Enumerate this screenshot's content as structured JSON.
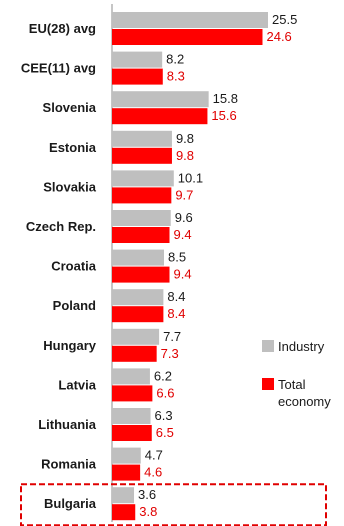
{
  "chart_data": {
    "type": "bar",
    "orientation": "horizontal",
    "categories": [
      "EU(28) avg",
      "CEE(11) avg",
      "Slovenia",
      "Estonia",
      "Slovakia",
      "Czech Rep.",
      "Croatia",
      "Poland",
      "Hungary",
      "Latvia",
      "Lithuania",
      "Romania",
      "Bulgaria"
    ],
    "series": [
      {
        "name": "Industry",
        "color": "#bfbfbf",
        "values": [
          25.5,
          8.2,
          15.8,
          9.8,
          10.1,
          9.6,
          8.5,
          8.4,
          7.7,
          6.2,
          6.3,
          4.7,
          3.6
        ],
        "labels": [
          "25.5",
          "8.2",
          "15.8",
          "9.8",
          "10.1",
          "9.6",
          "8.5",
          "8.4",
          "7.7",
          "6.2",
          "6.3",
          "4.7",
          "3.6"
        ],
        "label_color": "#1a1a1a"
      },
      {
        "name": "Total economy",
        "color": "#ff0000",
        "values": [
          24.6,
          8.3,
          15.6,
          9.8,
          9.7,
          9.4,
          9.4,
          8.4,
          7.3,
          6.6,
          6.5,
          4.6,
          3.8
        ],
        "labels": [
          "24.6",
          "8.3",
          "15.6",
          "9.8",
          "9.7",
          "9.4",
          "9.4",
          "8.4",
          "7.3",
          "6.6",
          "6.5",
          "4.6",
          "3.8"
        ],
        "label_color": "#e00000"
      }
    ],
    "legend": {
      "placement": "right",
      "entries": [
        {
          "lines": [
            "Industry"
          ],
          "color": "#bfbfbf"
        },
        {
          "lines": [
            "Total",
            "economy"
          ],
          "color": "#ff0000"
        }
      ]
    },
    "highlight": {
      "category": "Bulgaria",
      "color": "#e00000",
      "style": "dashed"
    },
    "xlim": [
      0,
      26
    ],
    "grid": false,
    "axis_color": "#8c8c8c"
  }
}
